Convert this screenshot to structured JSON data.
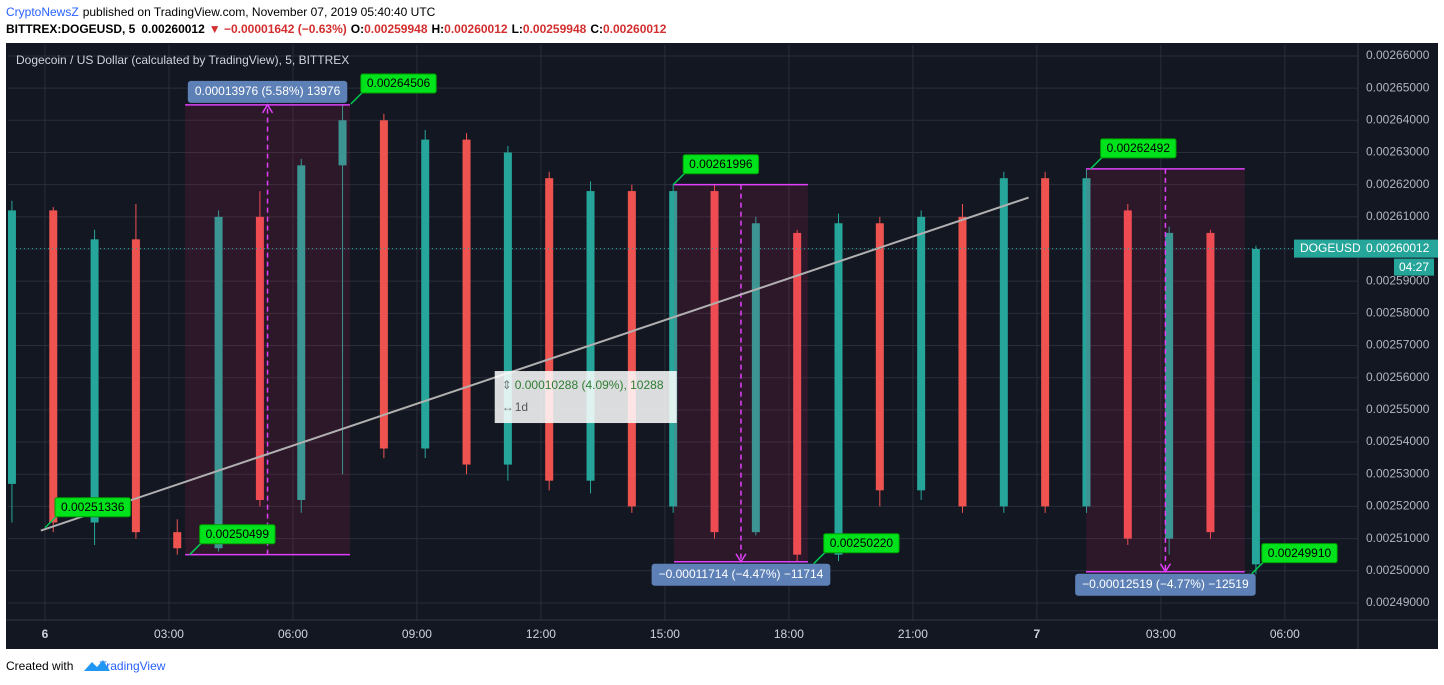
{
  "header": {
    "author": "CryptoNewsZ",
    "published": "published on TradingView.com, November 07, 2019 05:40:40 UTC",
    "symbol": "BITTREX:DOGEUSD, 5",
    "last": "0.00260012",
    "change": "▼ −0.00001642 (−0.63%)",
    "open_label": "O:",
    "open": "0.00259948",
    "high_label": "H:",
    "high": "0.00260012",
    "low_label": "L:",
    "low": "0.00259948",
    "close_label": "C:",
    "close": "0.00260012"
  },
  "chart_data": {
    "type": "candlestick",
    "title": "Dogecoin / US Dollar (calculated by TradingView), 5, BITTREX",
    "x": [
      -0.8,
      0.2,
      1.2,
      2.2,
      3.2,
      4.2,
      5.2,
      6.2,
      7.2,
      8.2,
      9.2,
      10.2,
      11.2,
      12.2,
      13.2,
      14.2,
      15.2,
      16.2,
      17.2,
      18.2,
      19.2,
      20.2,
      21.2,
      22.2,
      23.2,
      24.2,
      25.2,
      26.2,
      27.2,
      28.2,
      29.3
    ],
    "open": [
      0.002527,
      0.002612,
      0.002515,
      0.002603,
      0.002512,
      0.002507,
      0.00261,
      0.002522,
      0.002626,
      0.00264,
      0.002538,
      0.002634,
      0.002533,
      0.002622,
      0.002528,
      0.002618,
      0.00252,
      0.002618,
      0.002512,
      0.002605,
      0.002505,
      0.002608,
      0.002525,
      0.00261,
      0.00252,
      0.002622,
      0.00252,
      0.002612,
      0.00251,
      0.002605,
      0.002502
    ],
    "high": [
      0.002615,
      0.002613,
      0.002606,
      0.002614,
      0.002516,
      0.002612,
      0.002618,
      0.002628,
      0.002645,
      0.002642,
      0.002637,
      0.002636,
      0.002632,
      0.002624,
      0.002621,
      0.00262,
      0.00262,
      0.00262,
      0.00261,
      0.002606,
      0.002611,
      0.00261,
      0.002612,
      0.002614,
      0.002624,
      0.002624,
      0.002625,
      0.002614,
      0.002607,
      0.002606,
      0.002601
    ],
    "low": [
      0.002515,
      0.002512,
      0.002508,
      0.00251,
      0.002505,
      0.002506,
      0.00252,
      0.002518,
      0.00253,
      0.002535,
      0.002535,
      0.00253,
      0.002528,
      0.002525,
      0.002524,
      0.002518,
      0.002518,
      0.00251,
      0.002511,
      0.002503,
      0.002503,
      0.00252,
      0.002522,
      0.002518,
      0.002518,
      0.002518,
      0.002518,
      0.002508,
      0.002505,
      0.00251,
      0.002499
    ],
    "close": [
      0.002612,
      0.002515,
      0.002603,
      0.002512,
      0.002507,
      0.00261,
      0.002522,
      0.002626,
      0.00264,
      0.002538,
      0.002634,
      0.002533,
      0.00263,
      0.002528,
      0.002618,
      0.00252,
      0.002618,
      0.002512,
      0.002608,
      0.002505,
      0.002608,
      0.002525,
      0.00261,
      0.00252,
      0.002622,
      0.00252,
      0.002622,
      0.00251,
      0.002605,
      0.002512,
      0.0026
    ],
    "up_color": "#26a69a",
    "down_color": "#ef5350",
    "background": "#131722",
    "grid": true,
    "xlim": [
      -0.895,
      31.77
    ],
    "xticks": [
      {
        "value": 0,
        "label": "6"
      },
      {
        "value": 3,
        "label": "03:00"
      },
      {
        "value": 6,
        "label": "06:00"
      },
      {
        "value": 9,
        "label": "09:00"
      },
      {
        "value": 12,
        "label": "12:00"
      },
      {
        "value": 15,
        "label": "15:00"
      },
      {
        "value": 18,
        "label": "18:00"
      },
      {
        "value": 21,
        "label": "21:00"
      },
      {
        "value": 24,
        "label": "7"
      },
      {
        "value": 27,
        "label": "03:00"
      },
      {
        "value": 30,
        "label": "06:00"
      }
    ],
    "ylim": [
      0.0024847,
      0.0026634
    ],
    "yticks": [
      {
        "value": 0.00249,
        "label": "0.00249000"
      },
      {
        "value": 0.0025,
        "label": "0.00250000"
      },
      {
        "value": 0.00251,
        "label": "0.00251000"
      },
      {
        "value": 0.00252,
        "label": "0.00252000"
      },
      {
        "value": 0.00253,
        "label": "0.00253000"
      },
      {
        "value": 0.00254,
        "label": "0.00254000"
      },
      {
        "value": 0.00255,
        "label": "0.00255000"
      },
      {
        "value": 0.00256,
        "label": "0.00256000"
      },
      {
        "value": 0.00257,
        "label": "0.00257000"
      },
      {
        "value": 0.00258,
        "label": "0.00258000"
      },
      {
        "value": 0.00259,
        "label": "0.00259000"
      },
      {
        "value": 0.0026,
        "label": "0.00260000"
      },
      {
        "value": 0.00261,
        "label": "0.00261000"
      },
      {
        "value": 0.00262,
        "label": "0.00262000"
      },
      {
        "value": 0.00263,
        "label": "0.00263000"
      },
      {
        "value": 0.00264,
        "label": "0.00264000"
      },
      {
        "value": 0.00265,
        "label": "0.00265000"
      },
      {
        "value": 0.00266,
        "label": "0.00266000"
      }
    ],
    "last_price": {
      "value": 0.00260012,
      "name": "DOGEUSD",
      "label": "0.00260012",
      "countdown": "04:27"
    },
    "price_labels": [
      {
        "x": 0.0,
        "value": 0.00251336,
        "label": "0.00251336"
      },
      {
        "x": 3.5,
        "value": 0.00250499,
        "label": "0.00250499"
      },
      {
        "x": 7.4,
        "value": 0.00264506,
        "label": "0.00264506"
      },
      {
        "x": 15.2,
        "value": 0.00261996,
        "label": "0.00261996"
      },
      {
        "x": 18.6,
        "value": 0.0025022,
        "label": "0.00250220"
      },
      {
        "x": 25.3,
        "value": 0.00262492,
        "label": "0.00262492"
      },
      {
        "x": 29.2,
        "value": 0.0024991,
        "label": "0.00249910"
      }
    ],
    "measures": [
      {
        "x": [
          3.39,
          7.38
        ],
        "y": [
          0.002505,
          0.0026448
        ],
        "label": "0.00013976 (5.58%) 13976"
      },
      {
        "x": [
          15.22,
          18.46
        ],
        "y": [
          0.00262,
          0.0025028
        ],
        "label": "−0.00011714 (−4.47%) −11714"
      },
      {
        "x": [
          25.19,
          29.03
        ],
        "y": [
          0.0026249,
          0.0024997
        ],
        "label": "−0.00012519 (−4.77%) −12519"
      }
    ],
    "trend": {
      "x": [
        -0.1,
        23.8
      ],
      "y": [
        0.0025125,
        0.002616
      ],
      "label": "0.00010288 (4.09%), 10288",
      "period": "1d"
    }
  },
  "footer": {
    "created": "Created with",
    "brand": "TradingView"
  }
}
